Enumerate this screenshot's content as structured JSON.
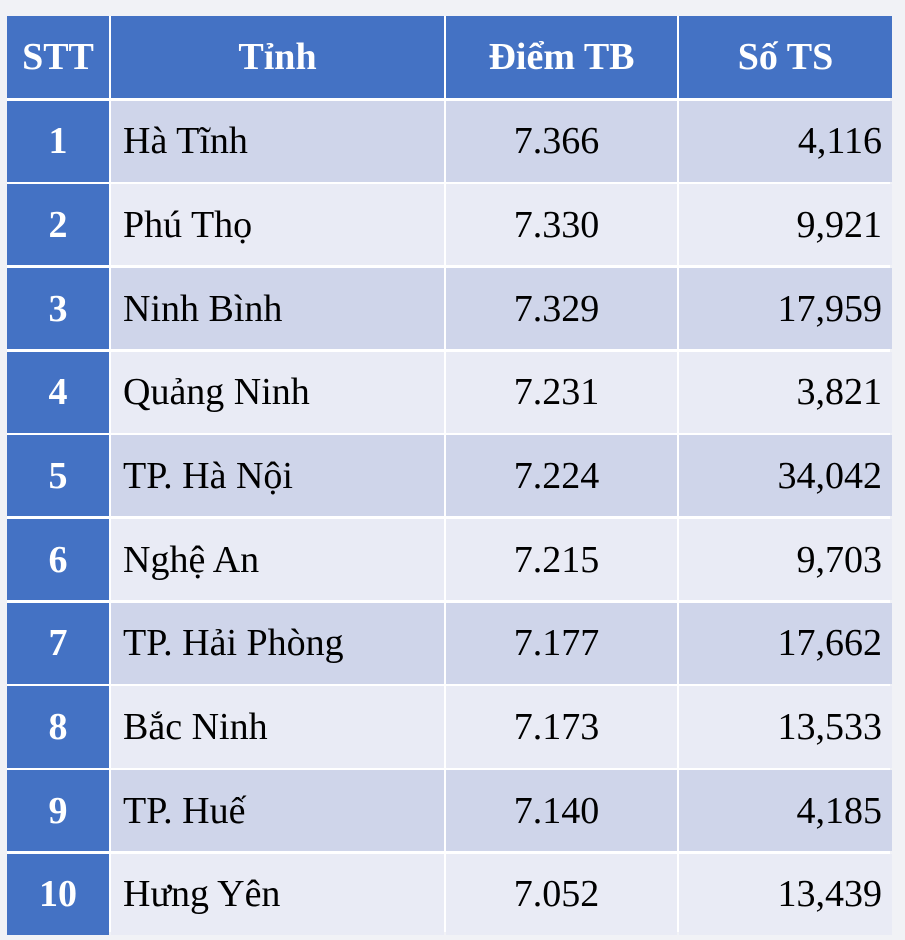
{
  "headers": {
    "stt": "STT",
    "province": "Tỉnh",
    "score": "Điểm TB",
    "count": "Số TS"
  },
  "rows": [
    {
      "stt": "1",
      "province": "Hà Tĩnh",
      "score": "7.366",
      "count": "4,116"
    },
    {
      "stt": "2",
      "province": "Phú Thọ",
      "score": "7.330",
      "count": "9,921"
    },
    {
      "stt": "3",
      "province": "Ninh Bình",
      "score": "7.329",
      "count": "17,959"
    },
    {
      "stt": "4",
      "province": "Quảng Ninh",
      "score": "7.231",
      "count": "3,821"
    },
    {
      "stt": "5",
      "province": "TP. Hà Nội",
      "score": "7.224",
      "count": "34,042"
    },
    {
      "stt": "6",
      "province": "Nghệ An",
      "score": "7.215",
      "count": "9,703"
    },
    {
      "stt": "7",
      "province": "TP. Hải Phòng",
      "score": "7.177",
      "count": "17,662"
    },
    {
      "stt": "8",
      "province": "Bắc Ninh",
      "score": "7.173",
      "count": "13,533"
    },
    {
      "stt": "9",
      "province": "TP. Huế",
      "score": "7.140",
      "count": "4,185"
    },
    {
      "stt": "10",
      "province": "Hưng Yên",
      "score": "7.052",
      "count": "13,439"
    }
  ],
  "colors": {
    "header_bg": "#4472c4",
    "row_dark": "#cfd5ea",
    "row_light": "#e9ebf5"
  }
}
